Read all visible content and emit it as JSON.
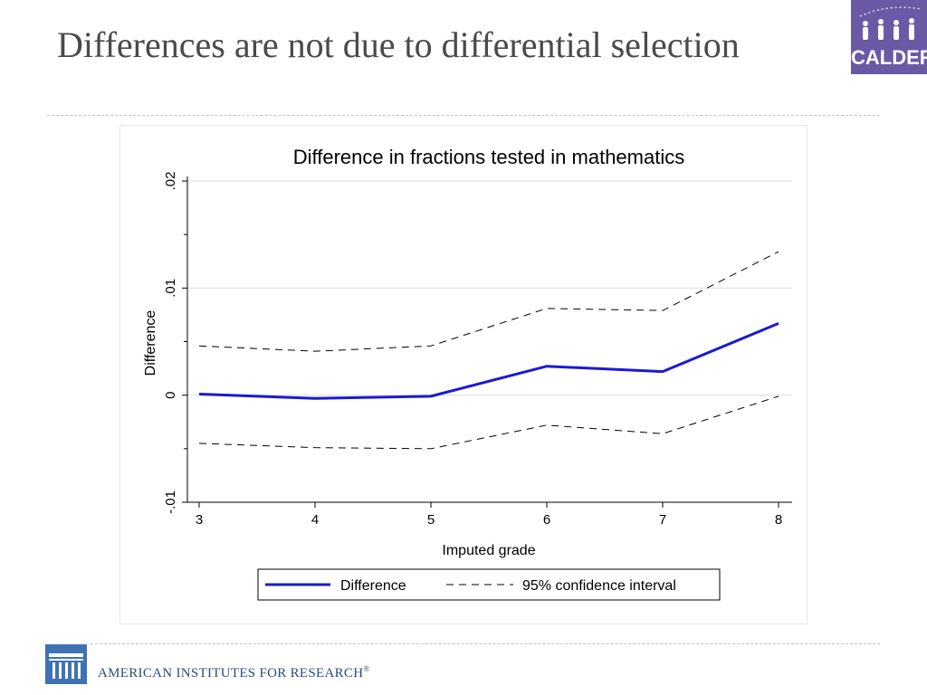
{
  "slide": {
    "title": "Differences are not due to differential selection"
  },
  "logo": {
    "text": "CALDER",
    "color": "#6a5aa6"
  },
  "footer": {
    "org_name": "American Institutes for Research",
    "org_name_display": "AMERICAN INSTITUTES FOR RESEARCH",
    "reg_mark": "®",
    "color": "#2f4a78"
  },
  "chart_data": {
    "type": "line",
    "title": "Difference in fractions tested in mathematics",
    "xlabel": "Imputed grade",
    "ylabel": "Difference",
    "x": [
      3,
      4,
      5,
      6,
      7,
      8
    ],
    "xticks": [
      "3",
      "4",
      "5",
      "6",
      "7",
      "8"
    ],
    "yticks": [
      {
        "value": -0.01,
        "label": "-.01"
      },
      {
        "value": 0,
        "label": "0"
      },
      {
        "value": 0.01,
        "label": ".01"
      },
      {
        "value": 0.02,
        "label": ".02"
      }
    ],
    "xlim": [
      3,
      8
    ],
    "ylim": [
      -0.01,
      0.02
    ],
    "grid": "horizontal",
    "series": [
      {
        "name": "Difference",
        "style": "solid",
        "color": "#1a1ad4",
        "values": [
          0.0001,
          -0.0003,
          -0.0001,
          0.0027,
          0.0022,
          0.0067
        ]
      },
      {
        "name": "95% confidence interval",
        "style": "dashed",
        "color": "#000000",
        "values": [
          0.0046,
          0.0041,
          0.0046,
          0.0081,
          0.0079,
          0.0134
        ]
      },
      {
        "name": "95% confidence interval",
        "style": "dashed",
        "color": "#000000",
        "values": [
          -0.0045,
          -0.0049,
          -0.005,
          -0.0028,
          -0.0036,
          -0.0001
        ]
      }
    ],
    "legend": {
      "position": "bottom",
      "entries": [
        {
          "label": "Difference",
          "style": "solid",
          "color": "#1a1ad4"
        },
        {
          "label": "95% confidence interval",
          "style": "dashed",
          "color": "#000000"
        }
      ]
    }
  }
}
